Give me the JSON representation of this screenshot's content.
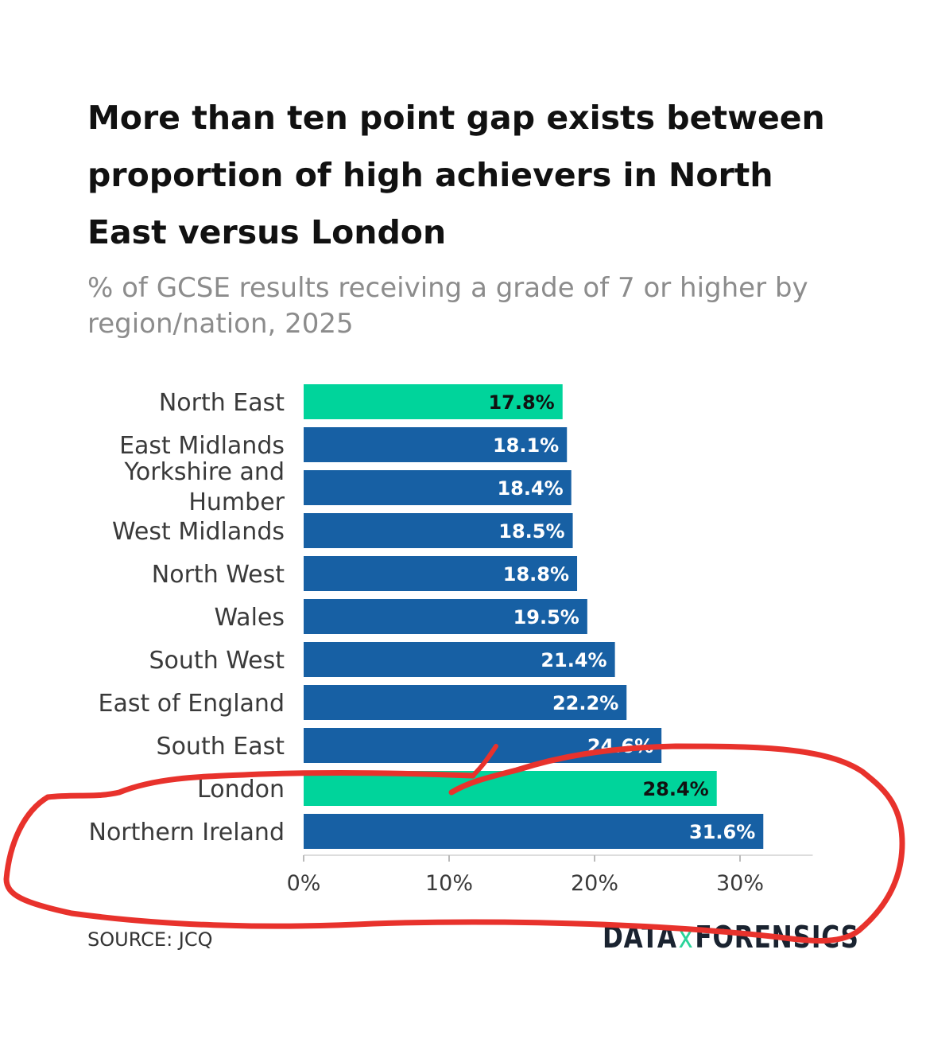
{
  "title": "More than ten point gap exists between proportion of high achievers in North East versus London",
  "subtitle": "% of GCSE results receiving a grade of 7 or higher by region/nation, 2025",
  "source": "SOURCE: JCQ",
  "logo": {
    "part1": "DATA",
    "separator": "x",
    "part2": "FORENSICS"
  },
  "colors": {
    "highlight": "#00d49b",
    "bar": "#1760a4",
    "axis": "#dddddd",
    "annotation": "#e8322c"
  },
  "chart_data": {
    "type": "bar",
    "orientation": "horizontal",
    "title": "More than ten point gap exists between proportion of high achievers in North East versus London",
    "subtitle": "% of GCSE results receiving a grade of 7 or higher by region/nation, 2025",
    "xlabel": "",
    "ylabel": "",
    "xlim": [
      0,
      35
    ],
    "x_ticks": [
      0,
      10,
      20,
      30
    ],
    "x_tick_labels": [
      "0%",
      "10%",
      "20%",
      "30%"
    ],
    "grid": false,
    "categories": [
      [
        "North East"
      ],
      [
        "East Midlands"
      ],
      [
        "Yorkshire and",
        "Humber"
      ],
      [
        "West Midlands"
      ],
      [
        "North West"
      ],
      [
        "Wales"
      ],
      [
        "South West"
      ],
      [
        "East of England"
      ],
      [
        "South East"
      ],
      [
        "London"
      ],
      [
        "Northern Ireland"
      ]
    ],
    "values": [
      17.8,
      18.1,
      18.4,
      18.5,
      18.8,
      19.5,
      21.4,
      22.2,
      24.6,
      28.4,
      31.6
    ],
    "value_labels": [
      "17.8%",
      "18.1%",
      "18.4%",
      "18.5%",
      "18.8%",
      "19.5%",
      "21.4%",
      "22.2%",
      "24.6%",
      "28.4%",
      "31.6%"
    ],
    "highlighted": [
      true,
      false,
      false,
      false,
      false,
      false,
      false,
      false,
      false,
      true,
      false
    ]
  }
}
